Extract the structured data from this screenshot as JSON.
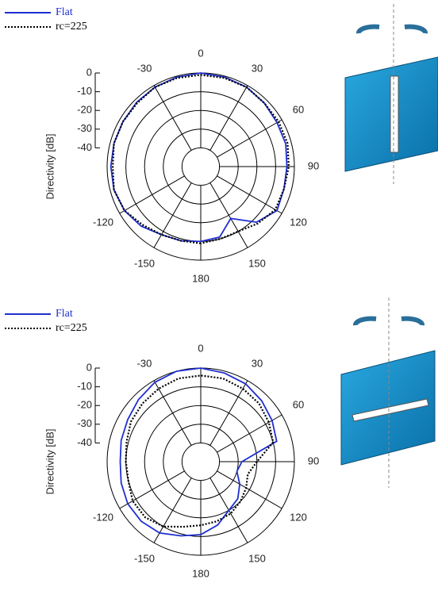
{
  "chart_data": [
    {
      "type": "polar",
      "ylabel": "Directivity [dB]",
      "legend": "upper left",
      "theta": [
        -180,
        -165,
        -150,
        -135,
        -120,
        -105,
        -90,
        -75,
        -60,
        -45,
        -30,
        -15,
        0,
        15,
        30,
        45,
        60,
        75,
        90,
        105,
        120,
        135,
        150,
        165,
        180
      ],
      "rlim": [
        -50,
        0
      ],
      "rticks": [
        -40,
        -30,
        -20,
        -10,
        0
      ],
      "thetaticks": [
        0,
        30,
        60,
        90,
        120,
        150,
        180,
        -150,
        -120,
        -30
      ],
      "series": [
        {
          "name": "Flat",
          "color": "#1f2fd0",
          "style": "solid",
          "values": [
            -10,
            -9,
            -8,
            -5,
            -3,
            -2,
            -2,
            -2,
            -2,
            -1.5,
            -1,
            -0.5,
            0,
            -0.5,
            -1,
            -2,
            -3,
            -3,
            -4,
            -4,
            -3,
            -8,
            -18,
            -11,
            -10
          ]
        },
        {
          "name": "rc=225",
          "color": "#000000",
          "style": "dotted",
          "values": [
            -9,
            -9,
            -8,
            -6,
            -3,
            -2,
            -3,
            -2,
            -2,
            -2,
            -1,
            -1,
            -1,
            -1,
            -1,
            -2,
            -2,
            -2,
            -3,
            -4,
            -4,
            -7,
            -10,
            -10,
            -9
          ]
        }
      ]
    },
    {
      "type": "polar",
      "ylabel": "Directivity [dB]",
      "legend": "upper left",
      "theta": [
        -180,
        -165,
        -150,
        -135,
        -120,
        -105,
        -90,
        -75,
        -60,
        -45,
        -30,
        -15,
        0,
        15,
        30,
        45,
        60,
        75,
        90,
        105,
        120,
        135,
        150,
        165,
        180
      ],
      "rlim": [
        -50,
        0
      ],
      "rticks": [
        -40,
        -30,
        -20,
        -10,
        0
      ],
      "thetaticks": [
        0,
        30,
        60,
        90,
        120,
        150,
        180,
        -150,
        -120,
        -30
      ],
      "series": [
        {
          "name": "Flat",
          "color": "#1f2fd0",
          "style": "solid",
          "values": [
            -11,
            -9,
            -6,
            -5,
            -5,
            -6,
            -7,
            -6,
            -5,
            -3,
            -1,
            0,
            0,
            -1,
            -2,
            -4,
            -6,
            -8,
            -28,
            -30,
            -26,
            -22,
            -20,
            -15,
            -11
          ]
        },
        {
          "name": "rc=225",
          "color": "#000000",
          "style": "dotted",
          "values": [
            -16,
            -14,
            -10,
            -8,
            -8,
            -10,
            -10,
            -9,
            -7,
            -6,
            -5,
            -4,
            -4,
            -4,
            -5,
            -6,
            -8,
            -10,
            -20,
            -24,
            -22,
            -20,
            -18,
            -17,
            -16
          ]
        }
      ]
    }
  ]
}
